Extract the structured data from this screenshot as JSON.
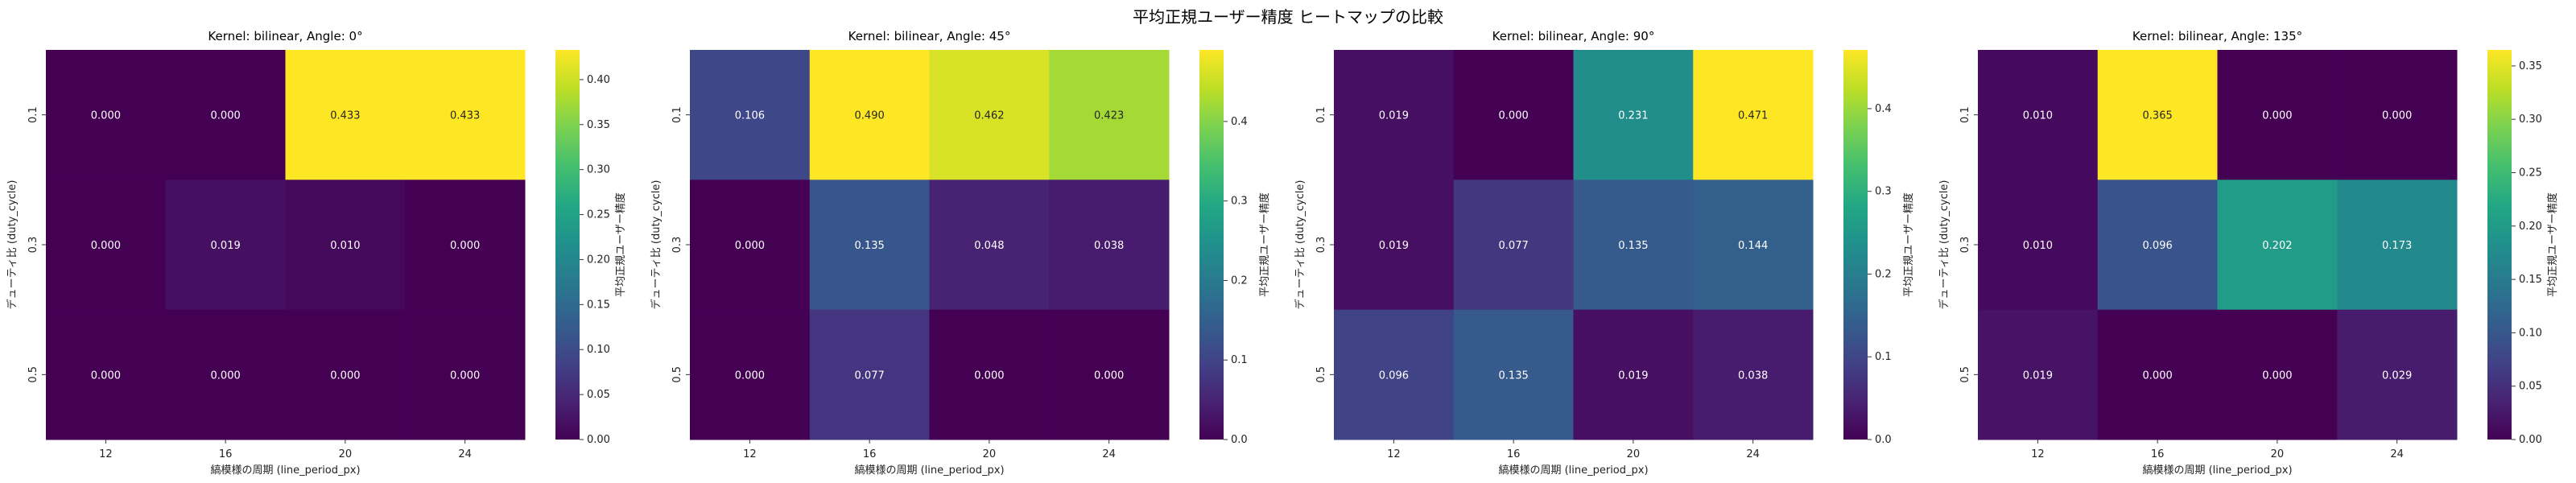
{
  "figure": {
    "suptitle": "平均正規ユーザー精度 ヒートマップの比較"
  },
  "chart_data": [
    {
      "type": "heatmap",
      "title": "Kernel: bilinear, Angle: 0°",
      "xlabel": "縞模様の周期 (line_period_px)",
      "ylabel": "デューティ比 (duty_cycle)",
      "x_categories": [
        "12",
        "16",
        "20",
        "24"
      ],
      "y_categories": [
        "0.1",
        "0.3",
        "0.5"
      ],
      "values": [
        [
          0.0,
          0.0,
          0.433,
          0.433
        ],
        [
          0.0,
          0.019,
          0.01,
          0.0
        ],
        [
          0.0,
          0.0,
          0.0,
          0.0
        ]
      ],
      "value_labels": [
        [
          "0.000",
          "0.000",
          "0.433",
          "0.433"
        ],
        [
          "0.000",
          "0.019",
          "0.010",
          "0.000"
        ],
        [
          "0.000",
          "0.000",
          "0.000",
          "0.000"
        ]
      ],
      "vmin": 0.0,
      "vmax": 0.433,
      "colormap": "viridis",
      "colorbar_label": "平均正規ユーザー精度",
      "colorbar_ticks": [
        "0.00",
        "0.05",
        "0.10",
        "0.15",
        "0.20",
        "0.25",
        "0.30",
        "0.35",
        "0.40"
      ]
    },
    {
      "type": "heatmap",
      "title": "Kernel: bilinear, Angle: 45°",
      "xlabel": "縞模様の周期 (line_period_px)",
      "ylabel": "デューティ比 (duty_cycle)",
      "x_categories": [
        "12",
        "16",
        "20",
        "24"
      ],
      "y_categories": [
        "0.1",
        "0.3",
        "0.5"
      ],
      "values": [
        [
          0.106,
          0.49,
          0.462,
          0.423
        ],
        [
          0.0,
          0.135,
          0.048,
          0.038
        ],
        [
          0.0,
          0.077,
          0.0,
          0.0
        ]
      ],
      "value_labels": [
        [
          "0.106",
          "0.490",
          "0.462",
          "0.423"
        ],
        [
          "0.000",
          "0.135",
          "0.048",
          "0.038"
        ],
        [
          "0.000",
          "0.077",
          "0.000",
          "0.000"
        ]
      ],
      "vmin": 0.0,
      "vmax": 0.49,
      "colormap": "viridis",
      "colorbar_label": "平均正規ユーザー精度",
      "colorbar_ticks": [
        "0.0",
        "0.1",
        "0.2",
        "0.3",
        "0.4"
      ]
    },
    {
      "type": "heatmap",
      "title": "Kernel: bilinear, Angle: 90°",
      "xlabel": "縞模様の周期 (line_period_px)",
      "ylabel": "デューティ比 (duty_cycle)",
      "x_categories": [
        "12",
        "16",
        "20",
        "24"
      ],
      "y_categories": [
        "0.1",
        "0.3",
        "0.5"
      ],
      "values": [
        [
          0.019,
          0.0,
          0.231,
          0.471
        ],
        [
          0.019,
          0.077,
          0.135,
          0.144
        ],
        [
          0.096,
          0.135,
          0.019,
          0.038
        ]
      ],
      "value_labels": [
        [
          "0.019",
          "0.000",
          "0.231",
          "0.471"
        ],
        [
          "0.019",
          "0.077",
          "0.135",
          "0.144"
        ],
        [
          "0.096",
          "0.135",
          "0.019",
          "0.038"
        ]
      ],
      "vmin": 0.0,
      "vmax": 0.471,
      "colormap": "viridis",
      "colorbar_label": "平均正規ユーザー精度",
      "colorbar_ticks": [
        "0.0",
        "0.1",
        "0.2",
        "0.3",
        "0.4"
      ]
    },
    {
      "type": "heatmap",
      "title": "Kernel: bilinear, Angle: 135°",
      "xlabel": "縞模様の周期 (line_period_px)",
      "ylabel": "デューティ比 (duty_cycle)",
      "x_categories": [
        "12",
        "16",
        "20",
        "24"
      ],
      "y_categories": [
        "0.1",
        "0.3",
        "0.5"
      ],
      "values": [
        [
          0.01,
          0.365,
          0.0,
          0.0
        ],
        [
          0.01,
          0.096,
          0.202,
          0.173
        ],
        [
          0.019,
          0.0,
          0.0,
          0.029
        ]
      ],
      "value_labels": [
        [
          "0.010",
          "0.365",
          "0.000",
          "0.000"
        ],
        [
          "0.010",
          "0.096",
          "0.202",
          "0.173"
        ],
        [
          "0.019",
          "0.000",
          "0.000",
          "0.029"
        ]
      ],
      "vmin": 0.0,
      "vmax": 0.365,
      "colormap": "viridis",
      "colorbar_label": "平均正規ユーザー精度",
      "colorbar_ticks": [
        "0.00",
        "0.05",
        "0.10",
        "0.15",
        "0.20",
        "0.25",
        "0.30",
        "0.35"
      ]
    }
  ]
}
